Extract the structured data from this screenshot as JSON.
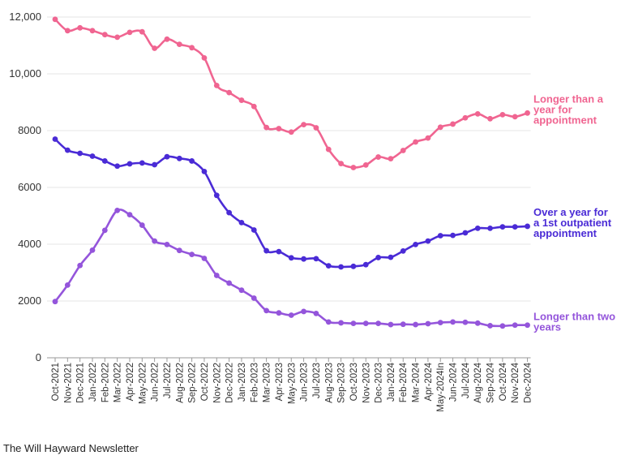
{
  "source": "The Will Hayward Newsletter",
  "chart_data": {
    "type": "line",
    "ylim": [
      0,
      12000
    ],
    "yticks": [
      0,
      2000,
      4000,
      6000,
      8000,
      10000,
      12000
    ],
    "ytick_labels": [
      "0",
      "2000",
      "4000",
      "6000",
      "8000",
      "10,000",
      "12,000"
    ],
    "categories": [
      "Oct-2021",
      "Nov-2021",
      "Dec-2021",
      "Jan-2022",
      "Feb-2022",
      "Mar-2022",
      "Apr-2022",
      "May-2022",
      "Jun-2022",
      "Jul-2022",
      "Aug-2022",
      "Sep-2022",
      "Oct-2022",
      "Nov-2022",
      "Dec-2022",
      "Jan-2023",
      "Feb-2023",
      "Mar-2023",
      "Apr-2023",
      "May-2023",
      "Jun-2023",
      "Jul-2023",
      "Aug-2023",
      "Sep-2023",
      "Oct-2023",
      "Nov-2023",
      "Dec-2023",
      "Jan-2024",
      "Feb-2024",
      "Mar-2024",
      "Apr-2024",
      "May-2024",
      "Jun-2024",
      "Jul-2024",
      "Aug-2024",
      "Sep-2024",
      "Oct-2024",
      "Nov-2024",
      "Dec-2024"
    ],
    "tick_labels": [
      "Oct-2021",
      "Nov-2021",
      "Dec-2021",
      "Jan-2022",
      "Feb-2022",
      "Mar-2022",
      "Apr-2022",
      "May-2022",
      "Jun-2022",
      "Jul-2022",
      "Aug-2022",
      "Sep-2022",
      "Oct-2022",
      "Nov-2022",
      "Dec-2022",
      "Jan-2023",
      "Feb-2023",
      "Mar-2023",
      "Apr-2023",
      "May-2023",
      "Jun-2023",
      "Jul-2023",
      "Aug-2023",
      "Sep-2023",
      "Oct-2023",
      "Nov-2023",
      "Dec-2023",
      "Jan-2024",
      "Feb-2024",
      "Mar-2024",
      "Apr-2024",
      "May-2024In",
      "Jun-2024",
      "Jul-2024",
      "Aug-2024",
      "Sep-2024",
      "Oct-2024",
      "Nov-2024",
      "Dec-2024"
    ],
    "tick_label_positions": [
      0,
      2,
      4,
      6,
      8,
      10,
      12,
      14,
      16,
      18,
      20,
      22,
      24,
      26,
      28,
      30,
      32,
      34,
      36,
      38,
      40,
      42,
      44,
      46,
      48,
      50,
      52,
      54,
      56,
      58,
      60,
      62,
      64,
      66,
      68,
      70,
      72,
      74,
      76
    ],
    "grid": true,
    "series": [
      {
        "name": "Longer than a year for appointment",
        "color": "#f06591",
        "label_lines": [
          "Longer than a",
          "year for",
          "appointment"
        ],
        "values": [
          11920,
          11520,
          11620,
          11520,
          11380,
          11290,
          11460,
          11480,
          10900,
          11220,
          11040,
          10920,
          10560,
          9590,
          9340,
          9070,
          8850,
          8110,
          8070,
          7950,
          8210,
          8100,
          7340,
          6840,
          6700,
          6790,
          7070,
          7010,
          7300,
          7600,
          7740,
          8120,
          8230,
          8450,
          8590,
          8420,
          8560,
          8490,
          8620
        ]
      },
      {
        "name": "Over a year for a 1st outpatient appointment",
        "color": "#4a2bd6",
        "label_lines": [
          "Over a year for",
          "a 1st outpatient",
          "appointment"
        ],
        "values": [
          7700,
          7310,
          7200,
          7100,
          6930,
          6750,
          6830,
          6860,
          6800,
          7080,
          7020,
          6930,
          6560,
          5720,
          5110,
          4760,
          4500,
          3770,
          3740,
          3520,
          3480,
          3490,
          3240,
          3200,
          3220,
          3280,
          3530,
          3540,
          3760,
          3990,
          4110,
          4300,
          4310,
          4400,
          4560,
          4560,
          4610,
          4610,
          4630
        ]
      },
      {
        "name": "Longer than two years",
        "color": "#9455db",
        "label_lines": [
          "Longer than two",
          "years"
        ],
        "values": [
          1980,
          2560,
          3250,
          3790,
          4490,
          5190,
          5040,
          4670,
          4110,
          3990,
          3780,
          3640,
          3500,
          2900,
          2630,
          2380,
          2100,
          1660,
          1580,
          1500,
          1630,
          1560,
          1260,
          1230,
          1210,
          1210,
          1210,
          1170,
          1180,
          1170,
          1200,
          1240,
          1260,
          1250,
          1220,
          1130,
          1120,
          1150,
          1150
        ]
      }
    ]
  }
}
